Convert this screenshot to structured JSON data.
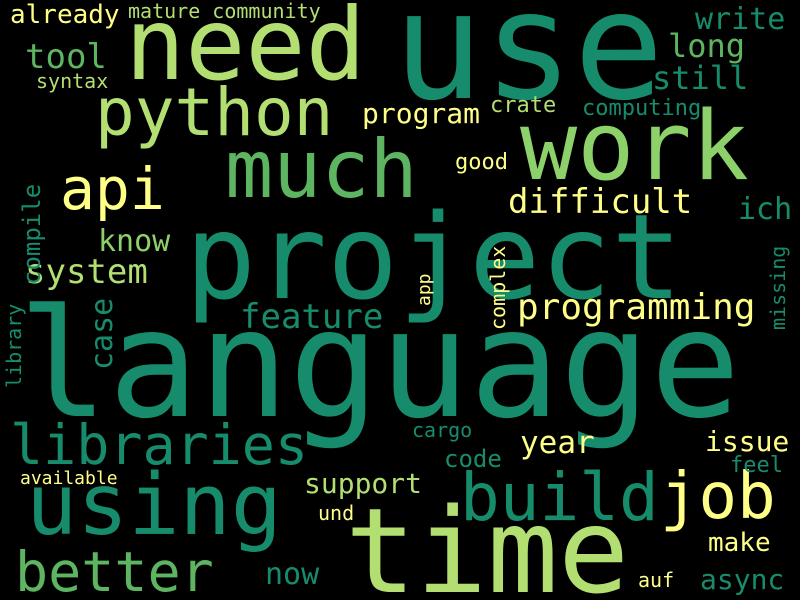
{
  "words": [
    {
      "id": "language",
      "text": "language",
      "color": "#178c6d"
    },
    {
      "id": "project",
      "text": "project",
      "color": "#178c6d"
    },
    {
      "id": "use",
      "text": "use",
      "color": "#178c6d"
    },
    {
      "id": "time",
      "text": "time",
      "color": "#b3df72"
    },
    {
      "id": "need",
      "text": "need",
      "color": "#b3df72"
    },
    {
      "id": "work",
      "text": "work",
      "color": "#8cd16a"
    },
    {
      "id": "using",
      "text": "using",
      "color": "#178c6d"
    },
    {
      "id": "much",
      "text": "much",
      "color": "#5db562"
    },
    {
      "id": "python",
      "text": "python",
      "color": "#b3df72"
    },
    {
      "id": "build",
      "text": "build",
      "color": "#178c6d"
    },
    {
      "id": "libraries",
      "text": "libraries",
      "color": "#178c6d"
    },
    {
      "id": "better",
      "text": "better",
      "color": "#5db562"
    },
    {
      "id": "api",
      "text": "api",
      "color": "#ffff88"
    },
    {
      "id": "job",
      "text": "job",
      "color": "#ffff88"
    },
    {
      "id": "programming",
      "text": "programming",
      "color": "#ffff88"
    },
    {
      "id": "system",
      "text": "system",
      "color": "#b3df72"
    },
    {
      "id": "difficult",
      "text": "difficult",
      "color": "#ffff88"
    },
    {
      "id": "feature",
      "text": "feature",
      "color": "#178c6d"
    },
    {
      "id": "tool",
      "text": "tool",
      "color": "#5db562"
    },
    {
      "id": "long",
      "text": "long",
      "color": "#5db562"
    },
    {
      "id": "still",
      "text": "still",
      "color": "#178c6d"
    },
    {
      "id": "write",
      "text": "write",
      "color": "#178c6d"
    },
    {
      "id": "know",
      "text": "know",
      "color": "#8cd16a"
    },
    {
      "id": "year",
      "text": "year",
      "color": "#ffff88"
    },
    {
      "id": "issue",
      "text": "issue",
      "color": "#ffff88"
    },
    {
      "id": "make",
      "text": "make",
      "color": "#ffff88"
    },
    {
      "id": "async",
      "text": "async",
      "color": "#178c6d"
    },
    {
      "id": "support",
      "text": "support",
      "color": "#b3df72"
    },
    {
      "id": "now",
      "text": "now",
      "color": "#178c6d"
    },
    {
      "id": "program",
      "text": "program",
      "color": "#ffff88"
    },
    {
      "id": "ich",
      "text": "ich",
      "color": "#178c6d"
    },
    {
      "id": "case",
      "text": "case",
      "color": "#178c6d"
    },
    {
      "id": "compile",
      "text": "compile",
      "color": "#178c6d"
    },
    {
      "id": "already",
      "text": "already",
      "color": "#ffff88"
    },
    {
      "id": "mature-community",
      "text": "mature community",
      "color": "#b3df72"
    },
    {
      "id": "syntax",
      "text": "syntax",
      "color": "#b3df72"
    },
    {
      "id": "crate",
      "text": "crate",
      "color": "#b3df72"
    },
    {
      "id": "computing",
      "text": "computing",
      "color": "#178c6d"
    },
    {
      "id": "good",
      "text": "good",
      "color": "#ffff88"
    },
    {
      "id": "code",
      "text": "code",
      "color": "#178c6d"
    },
    {
      "id": "cargo",
      "text": "cargo",
      "color": "#178c6d"
    },
    {
      "id": "feel",
      "text": "feel",
      "color": "#178c6d"
    },
    {
      "id": "available",
      "text": "available",
      "color": "#ffff88"
    },
    {
      "id": "und",
      "text": "und",
      "color": "#ffff88"
    },
    {
      "id": "auf",
      "text": "auf",
      "color": "#ffff88"
    },
    {
      "id": "complex",
      "text": "complex",
      "color": "#ffff88"
    },
    {
      "id": "missing",
      "text": "missing",
      "color": "#178c6d"
    },
    {
      "id": "library",
      "text": "library",
      "color": "#178c6d"
    },
    {
      "id": "app",
      "text": "app",
      "color": "#ffff88"
    }
  ]
}
